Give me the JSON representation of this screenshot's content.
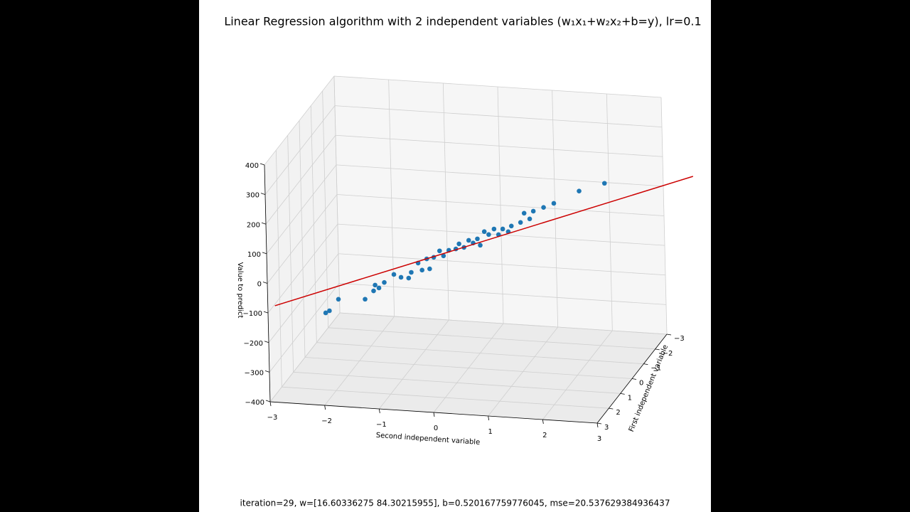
{
  "chart_data": {
    "type": "scatter3d",
    "title": "Linear Regression algorithm with 2 independent variables (w₁x₁+w₂x₂+b=y), lr=0.1",
    "annotation": "iteration=29, w=[16.60336275 84.30215955], b=0.520167759776045, mse=20.537629384936437",
    "x1_label": "First independent variable",
    "x2_label": "Second independent variable",
    "zlabel": "Value to predict",
    "x1lim": [
      -3,
      3
    ],
    "x2lim": [
      -3,
      3
    ],
    "zlim": [
      -400,
      400
    ],
    "x1ticks": [
      {
        "value": -3,
        "label": "−3"
      },
      {
        "value": -2,
        "label": "−2"
      },
      {
        "value": -1,
        "label": "−1"
      },
      0,
      1,
      2,
      3
    ],
    "x2ticks": [
      {
        "value": -3,
        "label": "−3"
      },
      {
        "value": -2,
        "label": "−2"
      },
      {
        "value": -1,
        "label": "−1"
      },
      0,
      1,
      2,
      3
    ],
    "zticks": [
      {
        "value": -400,
        "label": "−400"
      },
      {
        "value": -300,
        "label": "−300"
      },
      {
        "value": -200,
        "label": "−200"
      },
      {
        "value": -100,
        "label": "−100"
      },
      0,
      100,
      200,
      300,
      400
    ],
    "grid": true,
    "series": [
      {
        "type": "scatter",
        "color": "#1f77b4",
        "x1": [
          0,
          0,
          0,
          0,
          0,
          0,
          0,
          0,
          0,
          0,
          0,
          0,
          0,
          0,
          0,
          0,
          0,
          0,
          0,
          0,
          0,
          0,
          0,
          0,
          0,
          0,
          0,
          0,
          0,
          0,
          0,
          0,
          0,
          0,
          0,
          0,
          0,
          0,
          0,
          0,
          0,
          0
        ],
        "x2": [
          -2.6,
          -2.53,
          -2.36,
          -1.87,
          -1.71,
          -1.68,
          -1.61,
          -1.51,
          -1.33,
          -1.2,
          -1.06,
          -1.01,
          -0.88,
          -0.81,
          -0.72,
          -0.67,
          -0.59,
          -0.48,
          -0.41,
          -0.31,
          -0.18,
          -0.12,
          -0.03,
          0.06,
          0.14,
          0.22,
          0.27,
          0.35,
          0.43,
          0.53,
          0.61,
          0.69,
          0.79,
          0.85,
          1.02,
          1.09,
          1.19,
          1.26,
          1.45,
          1.64,
          2.11,
          2.58
        ],
        "z": [
          -245,
          -237,
          -196,
          -190,
          -160,
          -140,
          -149,
          -129,
          -100,
          -108,
          -109,
          -89,
          -56,
          -79,
          -40,
          -73,
          -33,
          -10,
          -26,
          -6,
          0,
          18,
          7,
          32,
          24,
          39,
          18,
          65,
          56,
          76,
          58,
          78,
          70,
          90,
          104,
          136,
          118,
          145,
          160,
          176,
          223,
          255
        ]
      },
      {
        "type": "line",
        "color": "#cc0000",
        "x1": [
          0,
          0
        ],
        "x2": [
          -3.53,
          4.21
        ],
        "z": [
          -232,
          298
        ]
      }
    ]
  }
}
